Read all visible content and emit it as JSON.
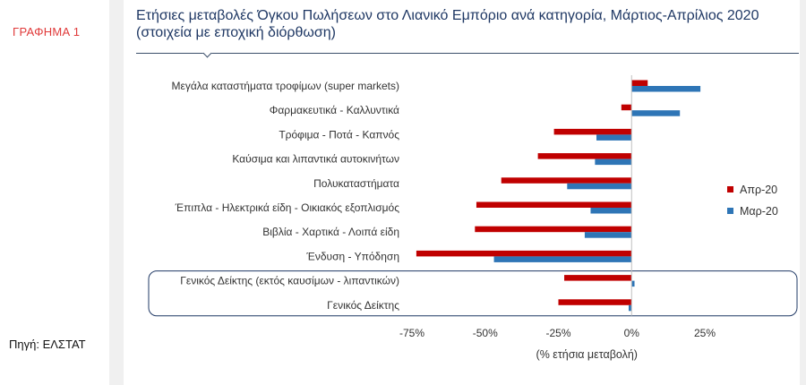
{
  "figure_label": "ΓΡΑΦΗΜΑ 1",
  "source": "Πηγή: ΕΛΣΤΑΤ",
  "title_line1": "Ετήσιες μεταβολές Όγκου Πωλήσεων στο Λιανικό Εμπόριο ανά κατηγορία, Μάρτιος-Απρίλιος 2020",
  "title_line2": "(στοιχεία με εποχική διόρθωση)",
  "colors": {
    "apr": "#c00000",
    "mar": "#2e75b6",
    "title": "#1f3864",
    "highlight_box": "#1f3864",
    "figure_label": "#e03a3a"
  },
  "chart_data": {
    "type": "bar",
    "orientation": "horizontal",
    "categories": [
      "Μεγάλα καταστήματα τροφίμων (super markets)",
      "Φαρμακευτικά - Καλλυντικά",
      "Τρόφιμα - Ποτά - Καπνός",
      "Καύσιμα και λιπαντικά αυτοκινήτων",
      "Πολυκαταστήματα",
      "Έπιπλα - Ηλεκτρικά είδη - Οικιακός εξοπλισμός",
      "Βιβλία - Χαρτικά - Λοιπά είδη",
      "Ένδυση - Υπόδηση",
      "Γενικός Δείκτης (εκτός καυσίμων - λιπαντικών)",
      "Γενικός Δείκτης"
    ],
    "series": [
      {
        "name": "Απρ-20",
        "values": [
          5.5,
          -3.5,
          -26.5,
          -32.0,
          -44.5,
          -53.0,
          -53.5,
          -73.5,
          -23.0,
          -25.0
        ]
      },
      {
        "name": "Μαρ-20",
        "values": [
          23.5,
          16.5,
          -12.0,
          -12.5,
          -22.0,
          -14.0,
          -16.0,
          -47.0,
          1.0,
          -1.0
        ]
      }
    ],
    "xlim": [
      -75,
      25
    ],
    "xticks": [
      "-75%",
      "-50%",
      "-25%",
      "0%",
      "25%"
    ],
    "xlabel": "(% ετήσια μεταβολή)",
    "legend_position": "right",
    "highlighted_categories": [
      "Γενικός Δείκτης (εκτός καυσίμων - λιπαντικών)",
      "Γενικός Δείκτης"
    ]
  }
}
